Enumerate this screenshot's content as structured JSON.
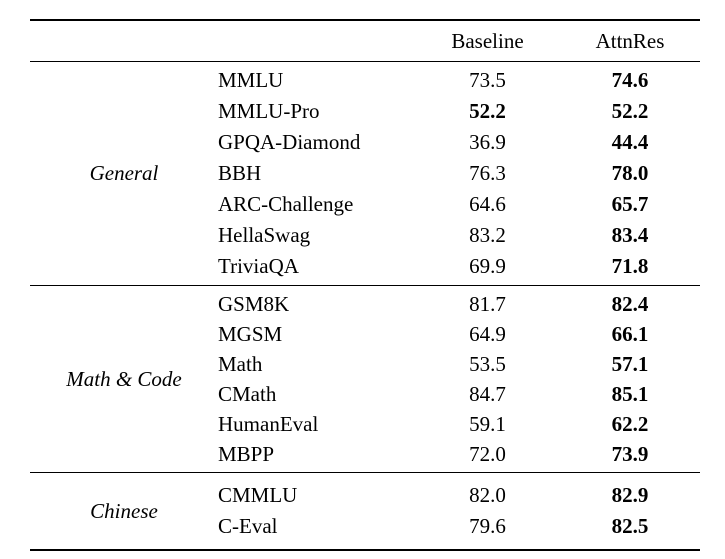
{
  "table": {
    "header": {
      "baseline": "Baseline",
      "attnres": "AttnRes"
    },
    "sections": [
      {
        "category": "General",
        "rows": [
          {
            "name": "MMLU",
            "baseline": "73.5",
            "attnres": "74.6",
            "baseline_bold": false,
            "attnres_bold": true
          },
          {
            "name": "MMLU-Pro",
            "baseline": "52.2",
            "attnres": "52.2",
            "baseline_bold": true,
            "attnres_bold": true
          },
          {
            "name": "GPQA-Diamond",
            "baseline": "36.9",
            "attnres": "44.4",
            "baseline_bold": false,
            "attnres_bold": true
          },
          {
            "name": "BBH",
            "baseline": "76.3",
            "attnres": "78.0",
            "baseline_bold": false,
            "attnres_bold": true
          },
          {
            "name": "ARC-Challenge",
            "baseline": "64.6",
            "attnres": "65.7",
            "baseline_bold": false,
            "attnres_bold": true
          },
          {
            "name": "HellaSwag",
            "baseline": "83.2",
            "attnres": "83.4",
            "baseline_bold": false,
            "attnres_bold": true
          },
          {
            "name": "TriviaQA",
            "baseline": "69.9",
            "attnres": "71.8",
            "baseline_bold": false,
            "attnres_bold": true
          }
        ]
      },
      {
        "category": "Math & Code",
        "rows": [
          {
            "name": "GSM8K",
            "baseline": "81.7",
            "attnres": "82.4",
            "baseline_bold": false,
            "attnres_bold": true
          },
          {
            "name": "MGSM",
            "baseline": "64.9",
            "attnres": "66.1",
            "baseline_bold": false,
            "attnres_bold": true
          },
          {
            "name": "Math",
            "baseline": "53.5",
            "attnres": "57.1",
            "baseline_bold": false,
            "attnres_bold": true
          },
          {
            "name": "CMath",
            "baseline": "84.7",
            "attnres": "85.1",
            "baseline_bold": false,
            "attnres_bold": true
          },
          {
            "name": "HumanEval",
            "baseline": "59.1",
            "attnres": "62.2",
            "baseline_bold": false,
            "attnres_bold": true
          },
          {
            "name": "MBPP",
            "baseline": "72.0",
            "attnres": "73.9",
            "baseline_bold": false,
            "attnres_bold": true
          }
        ]
      },
      {
        "category": "Chinese",
        "rows": [
          {
            "name": "CMMLU",
            "baseline": "82.0",
            "attnres": "82.9",
            "baseline_bold": false,
            "attnres_bold": true
          },
          {
            "name": "C-Eval",
            "baseline": "79.6",
            "attnres": "82.5",
            "baseline_bold": false,
            "attnres_bold": true
          }
        ]
      }
    ],
    "colors": {
      "text": "#000000",
      "background": "#ffffff",
      "rule": "#000000"
    }
  }
}
